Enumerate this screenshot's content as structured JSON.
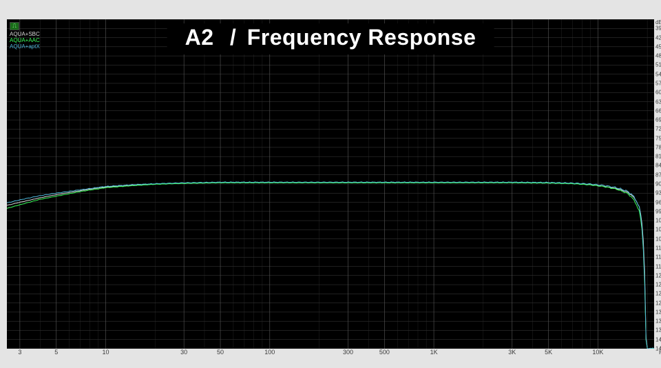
{
  "title": {
    "label_a": "A2",
    "slash": "/",
    "label_b": "Frequency Response"
  },
  "legend": {
    "icon_glyph": "⎍",
    "items": [
      {
        "label": "AQUA+SBC",
        "color": "#d8d8d8"
      },
      {
        "label": "AQUA+AAC",
        "color": "#39ff5a"
      },
      {
        "label": "AQUA+aptX",
        "color": "#4fb6d8"
      }
    ]
  },
  "chart": {
    "type": "line",
    "background_color": "#000000",
    "grid_major_color": "#5a5a5a",
    "grid_minor_color": "#333333",
    "grid_stroke_major": 0.6,
    "grid_stroke_minor": 0.35,
    "x_scale": "log",
    "x_min_hz": 2.5,
    "x_max_hz": 22000,
    "x_major_ticks": [
      3,
      5,
      10,
      30,
      50,
      100,
      300,
      500,
      1000,
      3000,
      5000,
      10000
    ],
    "x_tick_labels": [
      "3",
      "5",
      "10",
      "30",
      "50",
      "100",
      "300",
      "500",
      "1K",
      "3K",
      "5K",
      "10K"
    ],
    "x_minor_ticks": [
      4,
      6,
      7,
      8,
      9,
      20,
      40,
      60,
      70,
      80,
      90,
      200,
      400,
      600,
      700,
      800,
      900,
      2000,
      4000,
      6000,
      7000,
      8000,
      9000,
      20000
    ],
    "x_unit": "Hz",
    "y_scale": "linear",
    "y_min_db": -144,
    "y_max_db": -36,
    "y_tick_step": 3,
    "y_tick_label_step": 3,
    "y_unit": "dB",
    "title_fontsize": 32,
    "tick_fontsize": 8,
    "series": [
      {
        "name": "AQUA+SBC",
        "color": "#d8d8d8",
        "stroke_width": 1.0,
        "points_hz_db": [
          [
            2.5,
            -97
          ],
          [
            3,
            -96
          ],
          [
            4,
            -94.5
          ],
          [
            5,
            -93.5
          ],
          [
            6,
            -92.8
          ],
          [
            7,
            -92.2
          ],
          [
            8,
            -91.7
          ],
          [
            9,
            -91.3
          ],
          [
            10,
            -91
          ],
          [
            15,
            -90.3
          ],
          [
            20,
            -90
          ],
          [
            30,
            -89.7
          ],
          [
            50,
            -89.5
          ],
          [
            80,
            -89.5
          ],
          [
            100,
            -89.5
          ],
          [
            200,
            -89.5
          ],
          [
            500,
            -89.5
          ],
          [
            1000,
            -89.5
          ],
          [
            2000,
            -89.5
          ],
          [
            3000,
            -89.5
          ],
          [
            5000,
            -89.6
          ],
          [
            7000,
            -89.8
          ],
          [
            9000,
            -90.2
          ],
          [
            11000,
            -90.8
          ],
          [
            13000,
            -91.5
          ],
          [
            15000,
            -92.6
          ],
          [
            16000,
            -93.6
          ],
          [
            17000,
            -95.2
          ],
          [
            18000,
            -98
          ],
          [
            18500,
            -102
          ],
          [
            19000,
            -110
          ],
          [
            19300,
            -120
          ],
          [
            19500,
            -132
          ],
          [
            19700,
            -144
          ]
        ],
        "noise_amp_db": 0.25
      },
      {
        "name": "AQUA+AAC",
        "color": "#39ff5a",
        "stroke_width": 1.0,
        "points_hz_db": [
          [
            2.5,
            -98
          ],
          [
            3,
            -96.8
          ],
          [
            4,
            -95
          ],
          [
            5,
            -94
          ],
          [
            6,
            -93.2
          ],
          [
            7,
            -92.5
          ],
          [
            8,
            -92
          ],
          [
            9,
            -91.6
          ],
          [
            10,
            -91.2
          ],
          [
            15,
            -90.5
          ],
          [
            20,
            -90.1
          ],
          [
            30,
            -89.8
          ],
          [
            50,
            -89.6
          ],
          [
            80,
            -89.6
          ],
          [
            100,
            -89.6
          ],
          [
            200,
            -89.6
          ],
          [
            500,
            -89.6
          ],
          [
            1000,
            -89.6
          ],
          [
            2000,
            -89.6
          ],
          [
            3000,
            -89.6
          ],
          [
            5000,
            -89.7
          ],
          [
            7000,
            -89.9
          ],
          [
            9000,
            -90.3
          ],
          [
            11000,
            -90.9
          ],
          [
            13000,
            -91.7
          ],
          [
            15000,
            -93.0
          ],
          [
            16000,
            -94.2
          ],
          [
            17000,
            -96.2
          ],
          [
            18000,
            -99.5
          ],
          [
            18500,
            -104
          ],
          [
            19000,
            -113
          ],
          [
            19300,
            -124
          ],
          [
            19500,
            -135
          ],
          [
            19700,
            -144
          ]
        ],
        "noise_amp_db": 0.35
      },
      {
        "name": "AQUA+aptX",
        "color": "#4fb6d8",
        "stroke_width": 1.0,
        "points_hz_db": [
          [
            2.5,
            -96.2
          ],
          [
            3,
            -95.2
          ],
          [
            4,
            -93.8
          ],
          [
            5,
            -93
          ],
          [
            6,
            -92.4
          ],
          [
            7,
            -91.9
          ],
          [
            8,
            -91.5
          ],
          [
            9,
            -91.1
          ],
          [
            10,
            -90.8
          ],
          [
            15,
            -90.2
          ],
          [
            20,
            -89.9
          ],
          [
            30,
            -89.6
          ],
          [
            50,
            -89.4
          ],
          [
            80,
            -89.4
          ],
          [
            100,
            -89.4
          ],
          [
            200,
            -89.4
          ],
          [
            500,
            -89.4
          ],
          [
            1000,
            -89.4
          ],
          [
            2000,
            -89.4
          ],
          [
            3000,
            -89.4
          ],
          [
            5000,
            -89.5
          ],
          [
            7000,
            -89.7
          ],
          [
            9000,
            -90.0
          ],
          [
            11000,
            -90.5
          ],
          [
            13000,
            -91.2
          ],
          [
            15000,
            -92.3
          ],
          [
            16000,
            -93.3
          ],
          [
            17000,
            -95.0
          ],
          [
            18000,
            -98.2
          ],
          [
            18500,
            -103
          ],
          [
            19000,
            -112
          ],
          [
            19300,
            -123
          ],
          [
            19500,
            -134
          ],
          [
            19700,
            -144
          ]
        ],
        "noise_amp_db": 0.5
      }
    ]
  }
}
